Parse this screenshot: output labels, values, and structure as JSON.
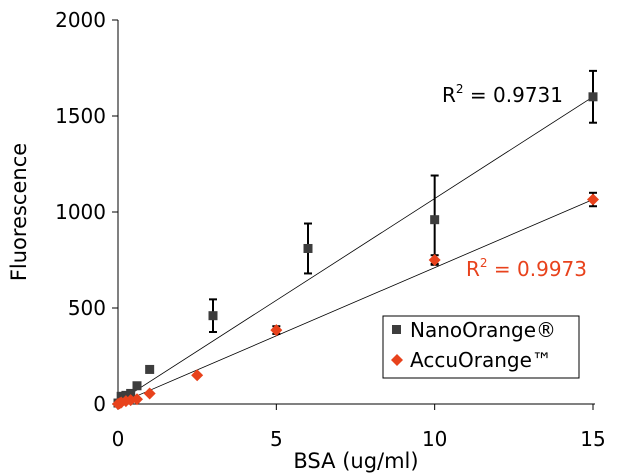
{
  "chart_data": {
    "type": "scatter",
    "title": "",
    "xlabel": "BSA (ug/ml)",
    "ylabel": "Fluorescence",
    "xlim": [
      0,
      15
    ],
    "ylim": [
      0,
      2000
    ],
    "x_ticks": [
      "0",
      "5",
      "10",
      "15"
    ],
    "y_ticks": [
      "0",
      "500",
      "1000",
      "1500",
      "2000"
    ],
    "grid": false,
    "legend_position": "bottom-right",
    "series": [
      {
        "name": "NanoOrange®",
        "marker": "square",
        "color": "#3d3d3d",
        "x": [
          0,
          0.1,
          0.25,
          0.4,
          0.6,
          1,
          3,
          6,
          10,
          15
        ],
        "y": [
          5,
          40,
          45,
          55,
          95,
          180,
          460,
          810,
          960,
          1600
        ],
        "error": [
          0,
          0,
          0,
          0,
          0,
          0,
          85,
          130,
          230,
          135
        ],
        "fit": {
          "r2_label": "R",
          "r2_exp": "2",
          "r2_value": " = 0.9731",
          "slope": 106,
          "intercept": 10
        }
      },
      {
        "name": "AccuOrange™",
        "marker": "diamond",
        "color": "#e8421c",
        "x": [
          0,
          0.05,
          0.1,
          0.25,
          0.4,
          0.6,
          1,
          2.5,
          5,
          10,
          15
        ],
        "y": [
          0,
          3,
          8,
          15,
          20,
          25,
          55,
          150,
          385,
          750,
          1065
        ],
        "error": [
          0,
          0,
          0,
          0,
          0,
          0,
          0,
          0,
          20,
          25,
          35
        ],
        "fit": {
          "r2_label": "R",
          "r2_exp": "2",
          "r2_value": " = 0.9973",
          "slope": 71,
          "intercept": 0
        }
      }
    ]
  }
}
